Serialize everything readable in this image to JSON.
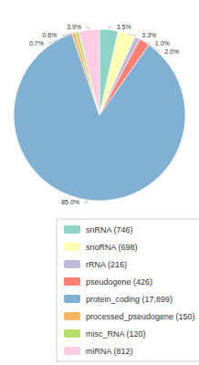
{
  "chart_data": {
    "type": "pie",
    "categories": [
      "snRNA (746)",
      "snoRNA (698)",
      "rRNA (216)",
      "pseudogene (426)",
      "protein_coding (17,899)",
      "processed_pseudogene (150)",
      "misc_RNA (120)",
      "miRNA (812)"
    ],
    "values": [
      3.5,
      3.3,
      1.0,
      2.0,
      85.0,
      0.7,
      0.6,
      3.9
    ],
    "value_labels": [
      "3.5%",
      "3.3%",
      "1.0%",
      "2.0%",
      "85.0%",
      "0.7%",
      "0.6%",
      "3.9%"
    ],
    "colors": [
      "#8dd3c7",
      "#ffffb3",
      "#bebada",
      "#fb8072",
      "#80b1d3",
      "#fdb462",
      "#b3de69",
      "#fccde5"
    ],
    "data_labels": true,
    "legend": "bottom"
  }
}
